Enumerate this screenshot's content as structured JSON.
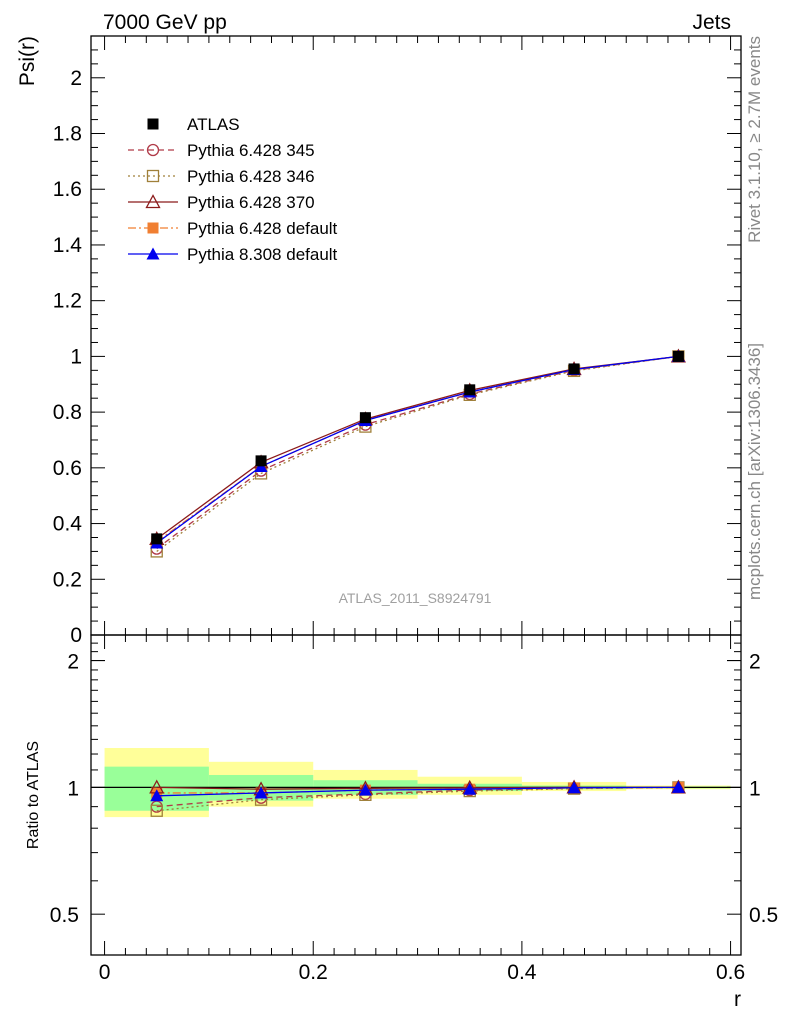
{
  "header": {
    "left": "7000 GeV pp",
    "right": "Jets"
  },
  "side_labels": {
    "rivet": "Rivet 3.1.10, ≥ 2.7M events",
    "mcplots": "mcplots.cern.ch [arXiv:1306.3436]"
  },
  "watermark": "ATLAS_2011_S8924791",
  "chart_data": {
    "type": "line",
    "x": [
      0.05,
      0.15,
      0.25,
      0.35,
      0.45,
      0.55
    ],
    "xlabel": "r",
    "xlim": [
      -0.013,
      0.61
    ],
    "xticks": [
      "0",
      "0.2",
      "0.4",
      "0.6"
    ],
    "main": {
      "ylabel": "Psi(r)",
      "ylim": [
        0,
        2.15
      ],
      "yticks": [
        "0",
        "0.2",
        "0.4",
        "0.6",
        "0.8",
        "1",
        "1.2",
        "1.4",
        "1.6",
        "1.8",
        "2"
      ]
    },
    "ratio": {
      "ylabel": "Ratio to ATLAS",
      "ylim": [
        0.4,
        2.3
      ],
      "log_scale": true,
      "yticks": [
        "0.5",
        "1",
        "2"
      ],
      "band_inner_green": [
        [
          0.88,
          1.12
        ],
        [
          0.93,
          1.07
        ],
        [
          0.96,
          1.04
        ],
        [
          0.98,
          1.02
        ],
        [
          0.99,
          1.01
        ],
        [
          0.995,
          1.005
        ]
      ],
      "band_outer_yellow": [
        [
          0.85,
          1.24
        ],
        [
          0.9,
          1.15
        ],
        [
          0.94,
          1.1
        ],
        [
          0.96,
          1.06
        ],
        [
          0.98,
          1.03
        ],
        [
          0.99,
          1.01
        ]
      ]
    },
    "legend_position": "top-left",
    "series": [
      {
        "name": "ATLAS",
        "color": "#000000",
        "marker": "filled-square",
        "dash": "none",
        "values": [
          0.345,
          0.625,
          0.78,
          0.88,
          0.955,
          1.0
        ],
        "ratio": [
          1,
          1,
          1,
          1,
          1,
          1
        ]
      },
      {
        "name": "Pythia 6.428 345",
        "color": "#b03a48",
        "marker": "open-circle",
        "dash": "6,4",
        "values": [
          0.31,
          0.59,
          0.755,
          0.865,
          0.95,
          1.0
        ],
        "ratio": [
          0.9,
          0.945,
          0.965,
          0.985,
          0.995,
          1.0
        ]
      },
      {
        "name": "Pythia 6.428 346",
        "color": "#a0803a",
        "marker": "open-square",
        "dash": "2,3",
        "values": [
          0.3,
          0.58,
          0.748,
          0.862,
          0.948,
          1.0
        ],
        "ratio": [
          0.88,
          0.935,
          0.96,
          0.98,
          0.993,
          1.0
        ]
      },
      {
        "name": "Pythia 6.428 370",
        "color": "#8b1a1a",
        "marker": "open-triangle",
        "dash": "none",
        "values": [
          0.345,
          0.62,
          0.775,
          0.878,
          0.955,
          1.0
        ],
        "ratio": [
          1.0,
          0.99,
          0.995,
          0.998,
          1.0,
          1.0
        ]
      },
      {
        "name": "Pythia 6.428 default",
        "color": "#f07f32",
        "marker": "filled-square",
        "dash": "8,3,2,3",
        "values": [
          0.335,
          0.605,
          0.77,
          0.872,
          0.952,
          1.0
        ],
        "ratio": [
          0.97,
          0.97,
          0.985,
          0.99,
          0.997,
          1.0
        ]
      },
      {
        "name": "Pythia 8.308 default",
        "color": "#0000ee",
        "marker": "filled-triangle",
        "dash": "none",
        "values": [
          0.33,
          0.605,
          0.77,
          0.872,
          0.953,
          1.0
        ],
        "ratio": [
          0.955,
          0.97,
          0.985,
          0.99,
          0.998,
          1.0
        ]
      }
    ]
  }
}
